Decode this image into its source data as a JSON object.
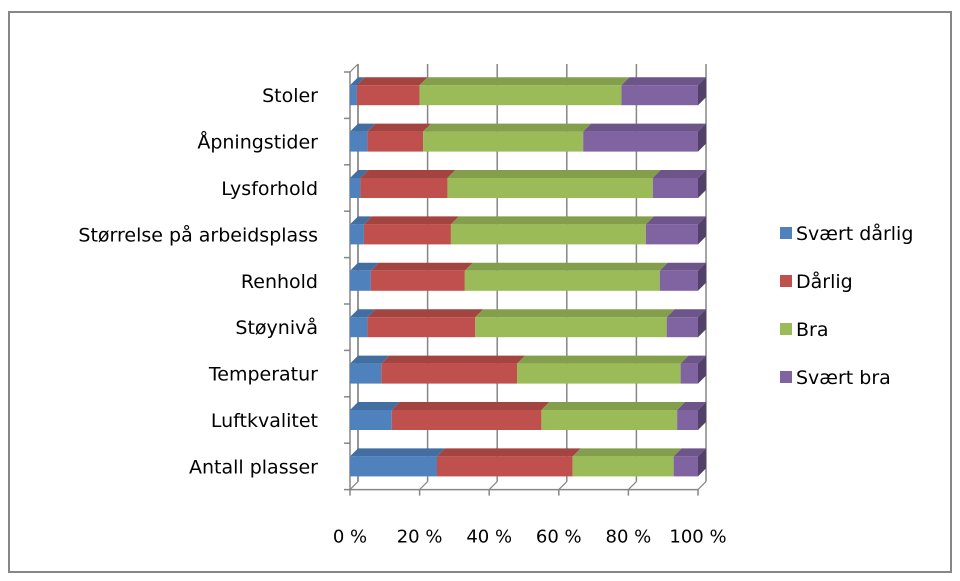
{
  "chart_data": {
    "type": "bar",
    "orientation": "horizontal",
    "stacking": "percent",
    "categories": [
      "Stoler",
      "Åpningstider",
      "Lysforhold",
      "Størrelse på arbeidsplass",
      "Renhold",
      "Støynivå",
      "Temperatur",
      "Luftkvalitet",
      "Antall plasser"
    ],
    "series": [
      {
        "name": "Svært dårlig",
        "color": "#4F81BD",
        "values": [
          2,
          5,
          3,
          4,
          6,
          5,
          9,
          12,
          25
        ]
      },
      {
        "name": "Dårlig",
        "color": "#C0504D",
        "values": [
          18,
          16,
          25,
          25,
          27,
          31,
          39,
          43,
          39
        ]
      },
      {
        "name": "Bra",
        "color": "#9BBB59",
        "values": [
          58,
          46,
          59,
          56,
          56,
          55,
          47,
          39,
          29
        ]
      },
      {
        "name": "Svært bra",
        "color": "#8064A2",
        "values": [
          22,
          33,
          13,
          15,
          11,
          9,
          5,
          6,
          7
        ]
      }
    ],
    "x_ticks": [
      "0 %",
      "20 %",
      "40 %",
      "60 %",
      "80 %",
      "100 %"
    ],
    "xlim": [
      0,
      100
    ],
    "grid": true,
    "legend_position": "right",
    "title": "",
    "xlabel": "",
    "ylabel": ""
  }
}
